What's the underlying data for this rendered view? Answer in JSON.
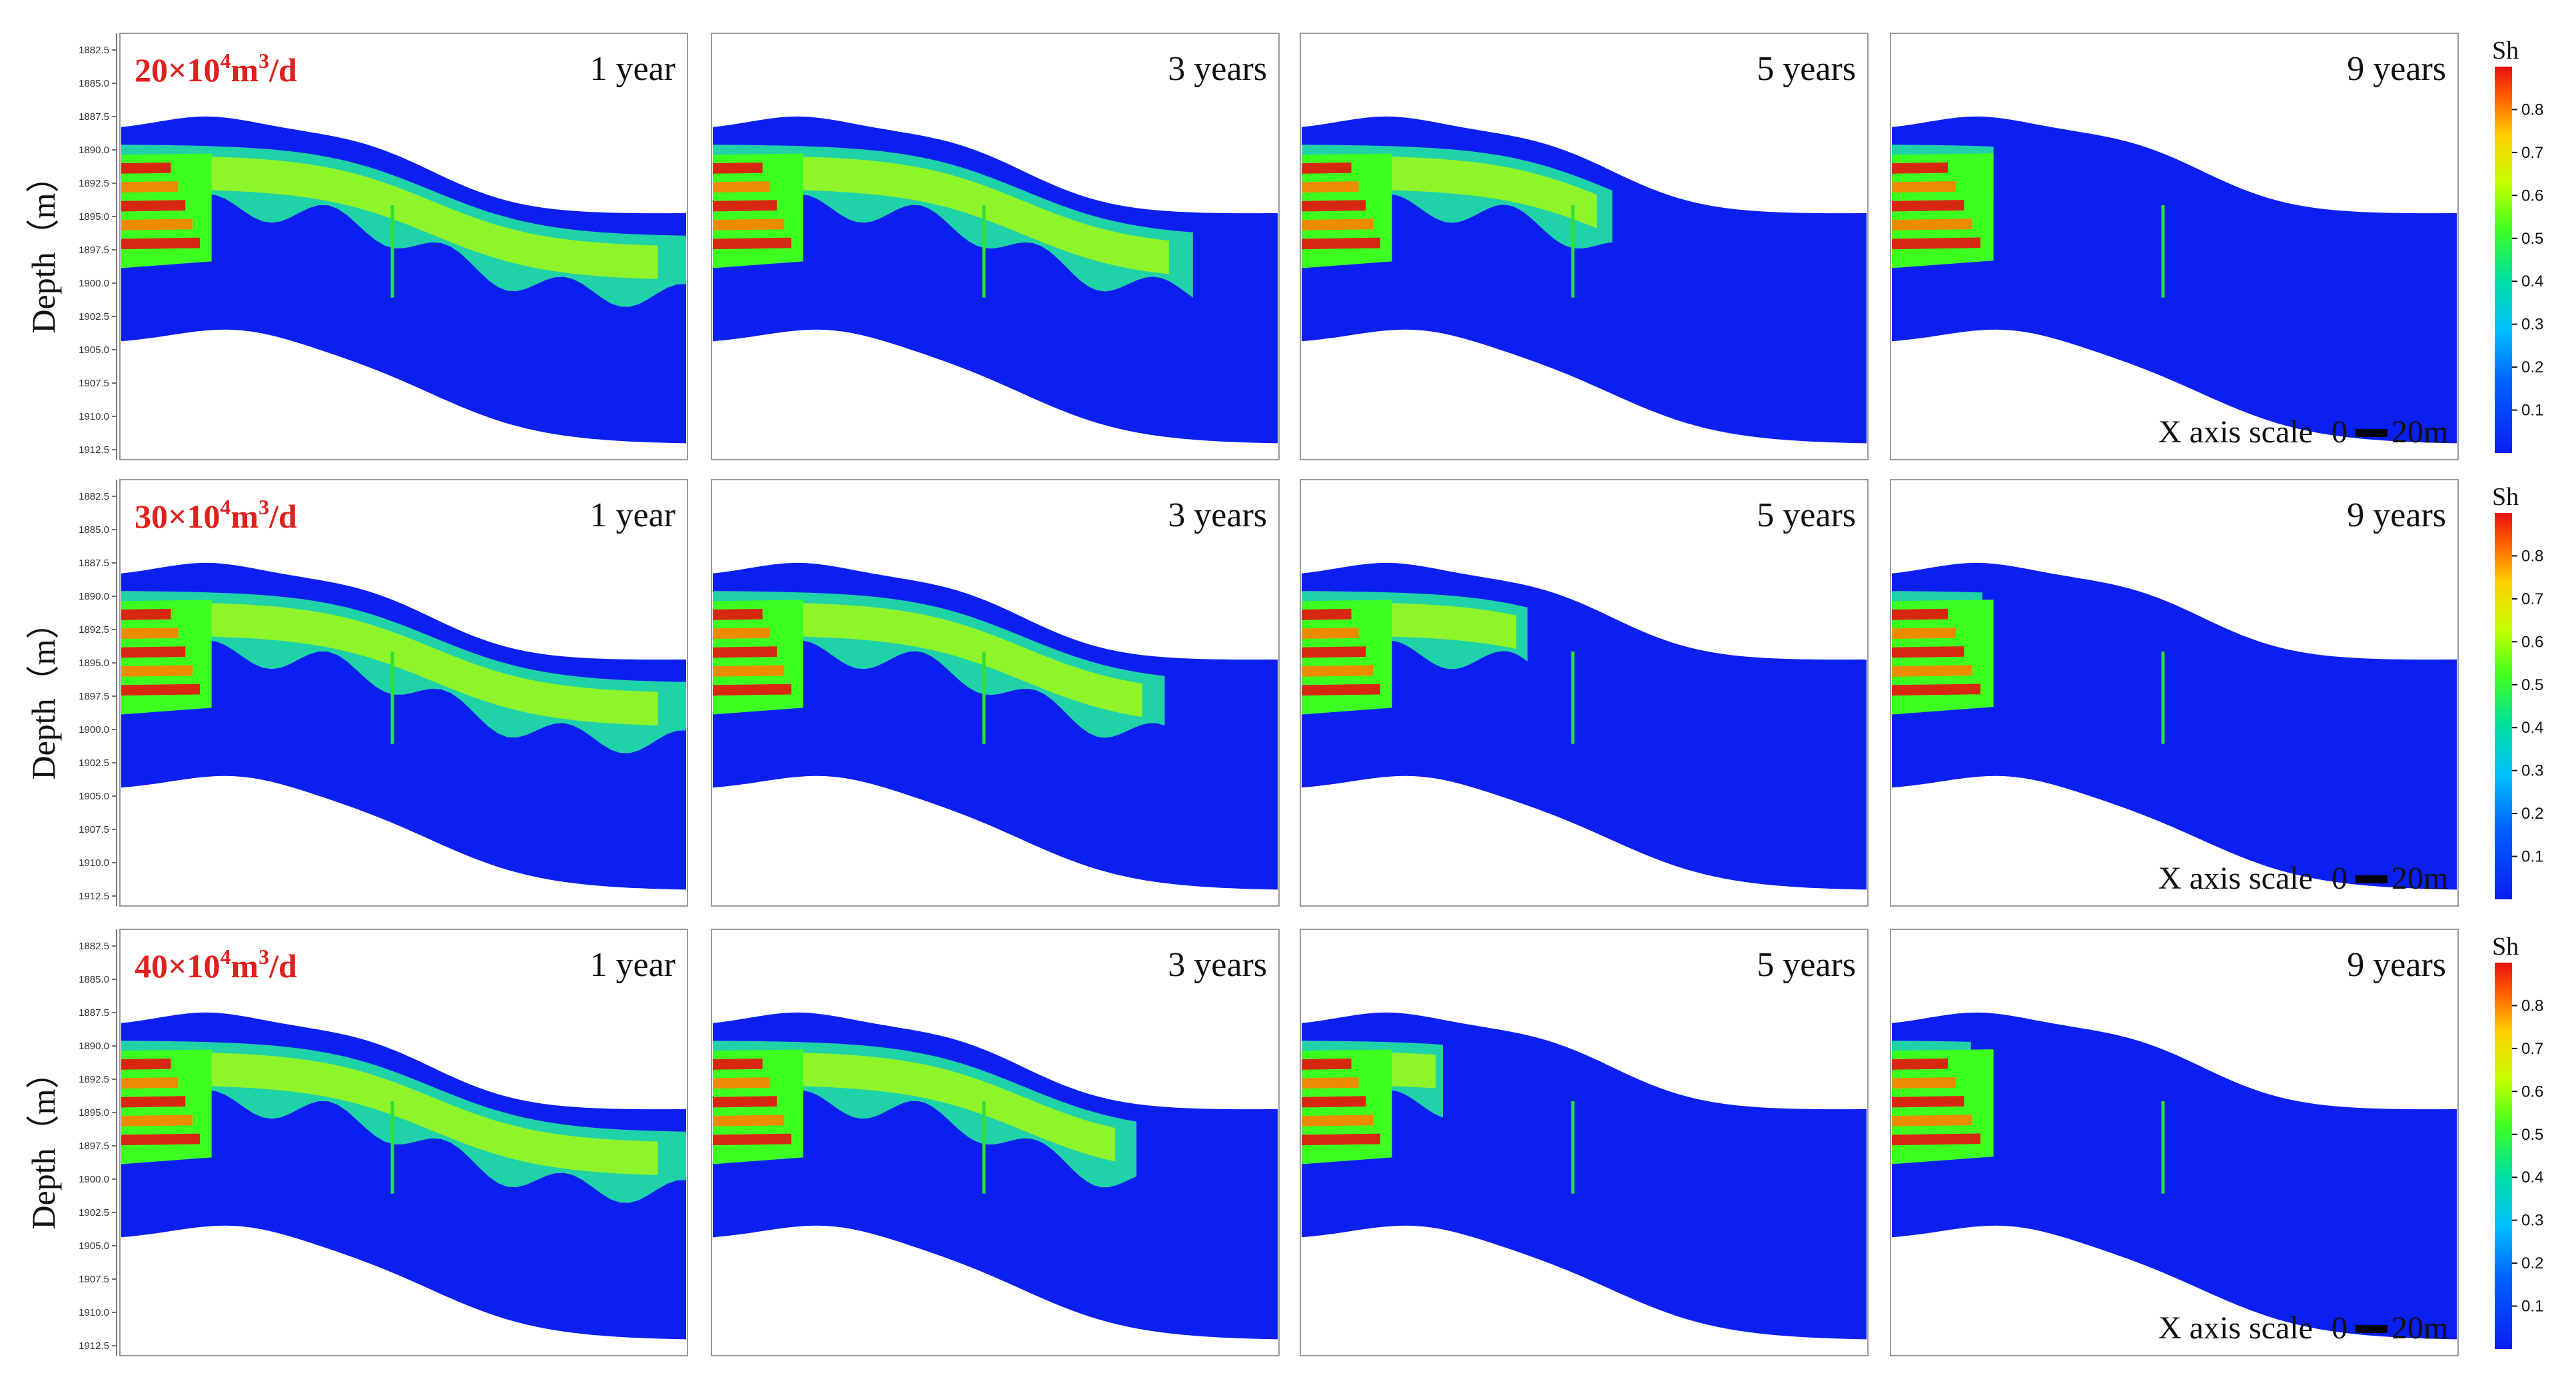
{
  "chart_data": {
    "type": "heatmap",
    "ylabel": "Depth（m）",
    "y_ticks": [
      "1882.5",
      "1885.0",
      "1887.5",
      "1890.0",
      "1892.5",
      "1895.0",
      "1897.5",
      "1900.0",
      "1902.5",
      "1905.0",
      "1907.5",
      "1910.0",
      "1912.5"
    ],
    "ylim": [
      1882.5,
      1912.5
    ],
    "rows": [
      {
        "rate_base": "20×10",
        "rate_exp": "4",
        "rate_unit": "m",
        "rate_unit_exp": "3",
        "rate_tail": "/d",
        "extent": [
          1.0,
          0.85,
          0.55,
          0.18
        ]
      },
      {
        "rate_base": "30×10",
        "rate_exp": "4",
        "rate_unit": "m",
        "rate_unit_exp": "3",
        "rate_tail": "/d",
        "extent": [
          1.0,
          0.8,
          0.4,
          0.16
        ]
      },
      {
        "rate_base": "40×10",
        "rate_exp": "4",
        "rate_unit": "m",
        "rate_unit_exp": "3",
        "rate_tail": "/d",
        "extent": [
          1.0,
          0.75,
          0.25,
          0.14
        ]
      }
    ],
    "times": [
      "1 year",
      "3 years",
      "5 years",
      "9 years"
    ],
    "colorbar": {
      "title": "Sh",
      "ticks": [
        "0.1",
        "0.2",
        "0.3",
        "0.4",
        "0.5",
        "0.6",
        "0.7",
        "0.8"
      ],
      "colors": [
        "#0a1ff0",
        "#00b4ff",
        "#00e0c0",
        "#3cff20",
        "#b4ff00",
        "#ffe000",
        "#ff8000",
        "#e81010"
      ]
    },
    "scale_bar": {
      "label": "X axis scale",
      "start": "0",
      "end": "20m"
    },
    "colors": {
      "background": "#0a1ff0",
      "well": "#30e030",
      "rate_label": "#e0201c"
    }
  }
}
